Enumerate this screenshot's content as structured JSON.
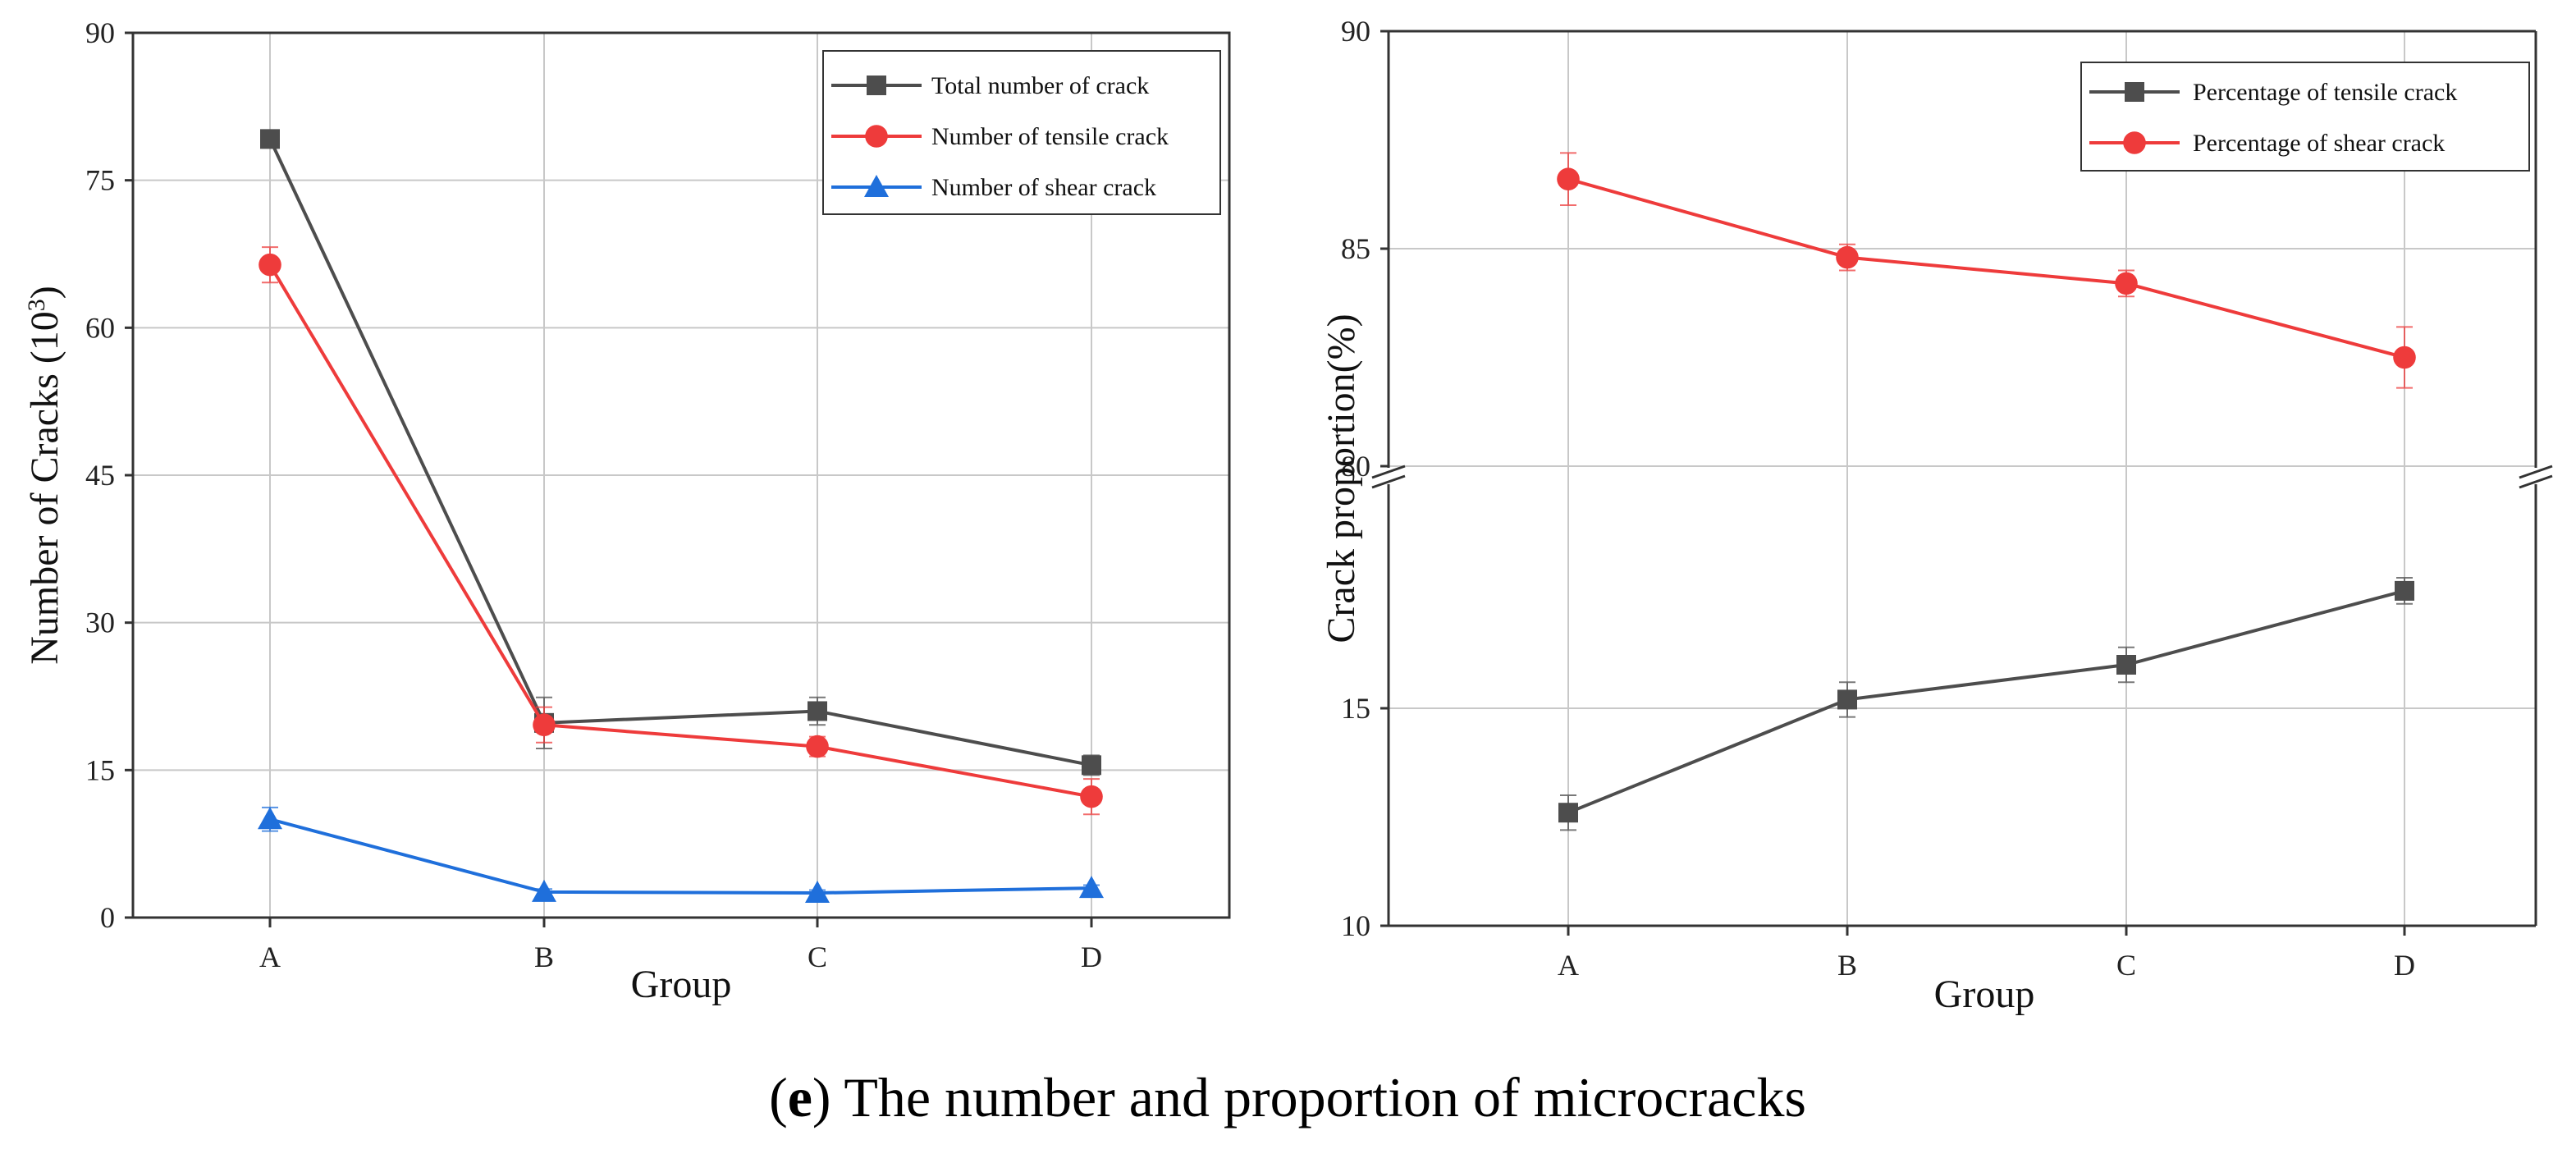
{
  "caption": {
    "open_paren": "(",
    "letter": "e",
    "close_paren": ")",
    "text": " The number and proportion of microcracks"
  },
  "chart_data": [
    {
      "type": "line",
      "title": "",
      "xlabel": "Group",
      "ylabel": "Number of Cracks (10",
      "ylabel_superscript": "3",
      "ylabel_close": ")",
      "categories": [
        "A",
        "B",
        "C",
        "D"
      ],
      "ylim": [
        0,
        90
      ],
      "yticks": [
        0,
        15,
        30,
        45,
        60,
        75,
        90
      ],
      "grid": true,
      "legend_position": "top-right",
      "series": [
        {
          "name": "Total number of crack",
          "color": "#4d4d4d",
          "marker": "square",
          "values": [
            79.2,
            19.8,
            21.0,
            15.5
          ],
          "errors": [
            0.9,
            2.6,
            1.4,
            1.0
          ]
        },
        {
          "name": "Number of tensile crack",
          "color": "#ee3b3b",
          "marker": "circle",
          "values": [
            66.4,
            19.6,
            17.4,
            12.3
          ],
          "errors": [
            1.8,
            1.8,
            1.0,
            1.8
          ]
        },
        {
          "name": "Number of shear crack",
          "color": "#1f6fdb",
          "marker": "triangle",
          "values": [
            10.0,
            2.6,
            2.5,
            3.0
          ],
          "errors": [
            1.2,
            0.3,
            0.3,
            0.3
          ]
        }
      ]
    },
    {
      "type": "line",
      "title": "",
      "xlabel": "Group",
      "ylabel": "Crack proportion(%)",
      "categories": [
        "A",
        "B",
        "C",
        "D"
      ],
      "broken_axis": {
        "lower": [
          10,
          20
        ],
        "upper": [
          80,
          90
        ]
      },
      "yticks": [
        10,
        15,
        80,
        85,
        90
      ],
      "grid": true,
      "legend_position": "top-right",
      "series": [
        {
          "name": "Percentage of tensile crack",
          "color": "#4d4d4d",
          "marker": "square",
          "values": [
            12.6,
            15.2,
            16.0,
            17.7
          ],
          "errors": [
            0.4,
            0.4,
            0.4,
            0.3
          ]
        },
        {
          "name": "Percentage of shear crack",
          "color": "#ee3b3b",
          "marker": "circle",
          "values": [
            86.6,
            84.8,
            84.2,
            82.5
          ],
          "errors": [
            0.6,
            0.3,
            0.3,
            0.7
          ]
        }
      ]
    }
  ]
}
